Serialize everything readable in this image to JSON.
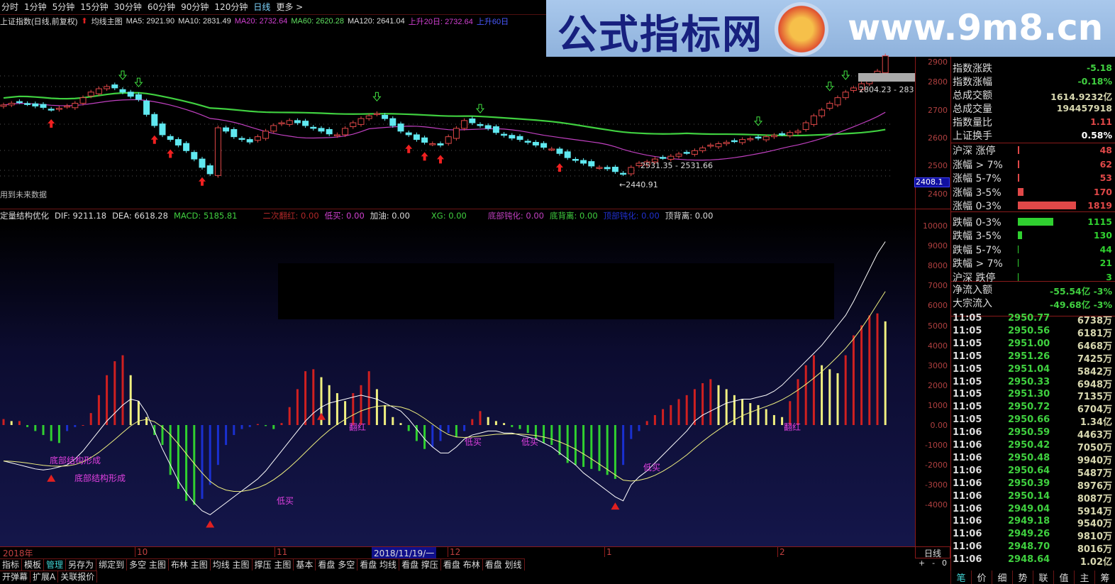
{
  "topbar": {
    "items": [
      "分时",
      "1分钟",
      "5分钟",
      "15分钟",
      "30分钟",
      "60分钟",
      "90分钟",
      "120分钟",
      "日线",
      "更多 >"
    ],
    "selected": "日线"
  },
  "watermark": {
    "title": "公式指标网",
    "url": "www.9m8.cn"
  },
  "info": {
    "name": "上证指数(日线,前复权)",
    "template": "均线主图",
    "ma5": "MA5: 2921.90",
    "ma10": "MA10: 2831.49",
    "ma20": "MA20: 2732.64",
    "ma60": "MA60: 2620.28",
    "ma120": "MA120: 2641.04",
    "up20": "上升20日: 2732.64",
    "up60": "上升60日"
  },
  "colors": {
    "up": "#e04848",
    "down": "#60e8f0",
    "ma20": "#c040c0",
    "ma60": "#40d040",
    "hist_red": "#d02020",
    "hist_yellow": "#f0f080",
    "hist_green": "#30d030",
    "hist_blue": "#1a30d0"
  },
  "main": {
    "price_ticks": [
      "2900",
      "2800",
      "2700",
      "2600",
      "2500",
      "2400"
    ],
    "cursor_price": "2408.1",
    "future_note": "用到未来数据",
    "ann_low_range": "2531.35 - 2531.66",
    "ann_low": "←2440.91",
    "ann_high_range": "2804.23 - 283"
  },
  "macd_head": {
    "name": "定量结构优化",
    "dif": "DIF: 9211.18",
    "dea": "DEA: 6618.28",
    "macd": "MACD: 5185.81",
    "ecfh": "二次翻红: 0.00",
    "dm": "低买: 0.00",
    "jy": "加油: 0.00",
    "xg": "XG: 0.00",
    "dbdh": "底部钝化: 0.00",
    "dbl": "底背离: 0.00",
    "dbdh2": "顶部钝化: 0.00",
    "dbl2": "顶背离: 0.00"
  },
  "macd_ticks": [
    "10000",
    "9000",
    "8000",
    "7000",
    "6000",
    "5000",
    "4000",
    "3000",
    "2000",
    "1000",
    "0.00",
    "-1000",
    "-2000",
    "-3000",
    "-4000"
  ],
  "macd_ann": {
    "struct": "底部结构形成",
    "buy": "低买",
    "red": "翻红"
  },
  "chart_data": [
    {
      "type": "candlestick",
      "title": "上证指数(日线,前复权)",
      "ylim": [
        2380,
        2920
      ],
      "close": [
        2724,
        2730,
        2735,
        2728,
        2720,
        2715,
        2708,
        2712,
        2720,
        2730,
        2750,
        2770,
        2782,
        2790,
        2785,
        2770,
        2755,
        2744,
        2690,
        2650,
        2617,
        2600,
        2580,
        2560,
        2530,
        2500,
        2477,
        2642,
        2630,
        2610,
        2600,
        2591,
        2610,
        2630,
        2650,
        2660,
        2668,
        2660,
        2650,
        2640,
        2630,
        2620,
        2617,
        2640,
        2660,
        2675,
        2685,
        2693,
        2675,
        2650,
        2630,
        2617,
        2600,
        2590,
        2585,
        2580,
        2610,
        2640,
        2668,
        2660,
        2650,
        2640,
        2625,
        2615,
        2605,
        2600,
        2590,
        2580,
        2572,
        2566,
        2550,
        2535,
        2525,
        2515,
        2505,
        2500,
        2495,
        2485,
        2477,
        2500,
        2515,
        2520,
        2530,
        2535,
        2540,
        2548,
        2553,
        2560,
        2570,
        2580,
        2585,
        2590,
        2595,
        2600,
        2603,
        2605,
        2610,
        2615,
        2620,
        2625,
        2630,
        2660,
        2685,
        2706,
        2730,
        2750,
        2770,
        2785,
        2800,
        2820,
        2845,
        2900
      ],
      "buy_signals": [
        6,
        19,
        21,
        25,
        51,
        53,
        55,
        70
      ],
      "sell_signals": [
        15,
        17,
        47,
        60,
        95,
        104,
        106
      ],
      "x_labels": [
        "2018年",
        "10",
        "11",
        "2018/11/19/一",
        "12",
        "1",
        "2"
      ]
    },
    {
      "type": "bar+line",
      "title": "定量结构优化",
      "ylim": [
        -4500,
        10500
      ],
      "hist": [
        300,
        200,
        200,
        -100,
        -300,
        -500,
        -800,
        -900,
        -300,
        -100,
        0,
        600,
        1500,
        2500,
        3200,
        3500,
        2500,
        1200,
        400,
        -500,
        -1000,
        -2500,
        -3200,
        -3800,
        -4000,
        -3700,
        -3000,
        -2000,
        -1000,
        -500,
        -200,
        -100,
        50,
        -50,
        -200,
        100,
        900,
        1800,
        2700,
        2800,
        2400,
        2000,
        1600,
        1200,
        1600,
        2000,
        2700,
        1800,
        1000,
        400,
        100,
        -300,
        -800,
        -1200,
        -1100,
        -800,
        -400,
        -600,
        -300,
        300,
        700,
        400,
        200,
        100,
        -100,
        -200,
        -400,
        -700,
        -900,
        -1000,
        -1500,
        -1900,
        -2000,
        -2100,
        -2200,
        -2300,
        -2500,
        -2700,
        -2000,
        -700,
        -300,
        200,
        500,
        800,
        1000,
        1300,
        1500,
        1800,
        2100,
        2300,
        2000,
        1800,
        1500,
        1300,
        1100,
        1000,
        800,
        500,
        400,
        1200,
        2300,
        3000,
        3500,
        3000,
        2800,
        2600,
        3500,
        4500,
        5000,
        5500,
        5600,
        5200
      ],
      "dif": [
        -1800,
        -1900,
        -2000,
        -2100,
        -2200,
        -2250,
        -2200,
        -2100,
        -2000,
        -1700,
        -1300,
        -800,
        -300,
        200,
        600,
        1000,
        1300,
        1200,
        600,
        -300,
        -1200,
        -2000,
        -2800,
        -3400,
        -3900,
        -4300,
        -4500,
        -4200,
        -3900,
        -3600,
        -3300,
        -3000,
        -2700,
        -2300,
        -1800,
        -1300,
        -800,
        -300,
        200,
        600,
        900,
        1100,
        1200,
        1300,
        1400,
        1500,
        1400,
        1300,
        1100,
        900,
        700,
        300,
        -200,
        -700,
        -1100,
        -1400,
        -1400,
        -1100,
        -700,
        -500,
        -400,
        -300,
        -300,
        -400,
        -400,
        -500,
        -600,
        -700,
        -900,
        -1100,
        -1400,
        -1700,
        -2000,
        -2400,
        -2700,
        -3000,
        -3300,
        -3600,
        -3800,
        -3000,
        -2600,
        -2300,
        -1900,
        -1500,
        -1100,
        -700,
        -300,
        200,
        500,
        700,
        900,
        1100,
        1200,
        1300,
        1300,
        1400,
        1500,
        1700,
        2000,
        2400,
        2800,
        3200,
        3600,
        4000,
        4500,
        5000,
        5500,
        6200,
        7000,
        7800,
        8600,
        9200
      ]
    }
  ],
  "panel": {
    "stats": [
      {
        "k": "指数涨跌",
        "v": "-5.18",
        "c": "#40d040"
      },
      {
        "k": "指数涨幅",
        "v": "-0.18%",
        "c": "#40d040"
      },
      {
        "k": "总成交额",
        "v": "1614.9232亿",
        "c": "#d8d8b0"
      },
      {
        "k": "总成交量",
        "v": "194457918",
        "c": "#d8d8b0"
      },
      {
        "k": "指数量比",
        "v": "1.11",
        "c": "#e04848"
      },
      {
        "k": "上证换手",
        "v": "0.58%",
        "c": "#ffffff"
      }
    ],
    "limits": [
      {
        "k": "沪深 涨停",
        "v": "48",
        "c": "#e04848",
        "w": 2
      },
      {
        "k": "涨幅 > 7%",
        "v": "62",
        "c": "#e04848",
        "w": 2
      },
      {
        "k": "涨幅 5-7%",
        "v": "53",
        "c": "#e04848",
        "w": 2
      },
      {
        "k": "涨幅 3-5%",
        "v": "170",
        "c": "#e04848",
        "w": 8
      },
      {
        "k": "涨幅 0-3%",
        "v": "1819",
        "c": "#e04848",
        "w": 82
      },
      {
        "k": "跌幅 0-3%",
        "v": "1115",
        "c": "#30d030",
        "w": 50
      },
      {
        "k": "跌幅 3-5%",
        "v": "130",
        "c": "#30d030",
        "w": 6
      },
      {
        "k": "跌幅 5-7%",
        "v": "44",
        "c": "#30d030",
        "w": 1
      },
      {
        "k": "跌幅 > 7%",
        "v": "21",
        "c": "#30d030",
        "w": 1
      },
      {
        "k": "沪深 跌停",
        "v": "3",
        "c": "#30d030",
        "w": 1
      }
    ],
    "flows": [
      {
        "k": "净流入额",
        "v": "-55.54亿  -3%"
      },
      {
        "k": "大宗流入",
        "v": "-49.68亿  -3%"
      }
    ],
    "ticks": [
      [
        "11:05",
        "2950.77",
        "6738万"
      ],
      [
        "11:05",
        "2950.56",
        "6181万"
      ],
      [
        "11:05",
        "2951.00",
        "6468万"
      ],
      [
        "11:05",
        "2951.26",
        "7425万"
      ],
      [
        "11:05",
        "2951.04",
        "5842万"
      ],
      [
        "11:05",
        "2950.33",
        "6948万"
      ],
      [
        "11:05",
        "2951.30",
        "7135万"
      ],
      [
        "11:05",
        "2950.72",
        "6704万"
      ],
      [
        "11:05",
        "2950.66",
        "1.34亿"
      ],
      [
        "11:06",
        "2950.59",
        "4463万"
      ],
      [
        "11:06",
        "2950.42",
        "7050万"
      ],
      [
        "11:06",
        "2950.48",
        "9940万"
      ],
      [
        "11:06",
        "2950.64",
        "5487万"
      ],
      [
        "11:06",
        "2950.39",
        "8976万"
      ],
      [
        "11:06",
        "2950.14",
        "8087万"
      ],
      [
        "11:06",
        "2949.04",
        "5914万"
      ],
      [
        "11:06",
        "2949.18",
        "9540万"
      ],
      [
        "11:06",
        "2949.26",
        "9810万"
      ],
      [
        "11:06",
        "2948.70",
        "8016万"
      ],
      [
        "11:06",
        "2948.64",
        "1.02亿"
      ]
    ],
    "tabs": [
      "笔",
      "价",
      "细",
      "势",
      "联",
      "值",
      "主",
      "筹"
    ]
  },
  "bottom": {
    "period": "日线",
    "zoom": [
      "+",
      "-",
      "0"
    ],
    "toolbar1": [
      "指标",
      "模板",
      "管理",
      "另存为",
      "绑定到",
      "多空 主图",
      "布林 主图",
      "均线 主图",
      "撑压 主图",
      "基本",
      "看盘 多空",
      "看盘 均线",
      "看盘 撑压",
      "看盘 布林",
      "看盘 划线"
    ],
    "toolbar2": [
      "开弹幕",
      "扩展A",
      "关联报价"
    ],
    "toolbar1_selected": "管理"
  }
}
